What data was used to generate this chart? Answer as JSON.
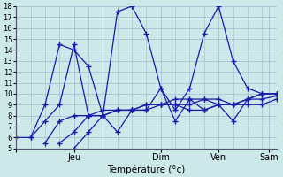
{
  "xlabel": "Température (°c)",
  "background_color": "#cce8e8",
  "grid_color": "#9bbccc",
  "line_color": "#1a1aaa",
  "ylim": [
    5,
    18
  ],
  "yticks": [
    5,
    6,
    7,
    8,
    9,
    10,
    11,
    12,
    13,
    14,
    15,
    16,
    17,
    18
  ],
  "xlim": [
    0,
    72
  ],
  "day_positions": [
    0,
    16,
    40,
    56,
    70
  ],
  "day_labels": [
    "",
    "Jeu",
    "Dim",
    "Ven",
    "Sam"
  ],
  "lines": [
    {
      "x": [
        0,
        4,
        8,
        12,
        16,
        20,
        24,
        28,
        32,
        36,
        40,
        44,
        48,
        52,
        56,
        60,
        64,
        68,
        72
      ],
      "y": [
        6.0,
        6.0,
        9.0,
        14.5,
        14.0,
        12.5,
        8.0,
        17.5,
        18.0,
        15.5,
        10.5,
        8.5,
        10.5,
        15.5,
        18.0,
        13.0,
        10.5,
        10.0,
        10.0
      ]
    },
    {
      "x": [
        4,
        8,
        12,
        16,
        20,
        24,
        28,
        32,
        36,
        40,
        44,
        48,
        52,
        56,
        60,
        64,
        68,
        72
      ],
      "y": [
        6.0,
        7.5,
        9.0,
        14.5,
        8.0,
        8.0,
        8.5,
        8.5,
        8.5,
        10.5,
        7.5,
        9.5,
        9.5,
        9.0,
        7.5,
        9.5,
        10.0,
        10.0
      ]
    },
    {
      "x": [
        8,
        12,
        16,
        20,
        24,
        28,
        32,
        36,
        40,
        44,
        48,
        52,
        56,
        60,
        64,
        68,
        72
      ],
      "y": [
        5.5,
        7.5,
        8.0,
        8.0,
        8.5,
        8.5,
        8.5,
        9.0,
        9.0,
        9.0,
        8.5,
        8.5,
        9.0,
        9.0,
        9.5,
        10.0,
        10.0
      ]
    },
    {
      "x": [
        12,
        16,
        20,
        24,
        28,
        32,
        36,
        40,
        44,
        48,
        52,
        56,
        60,
        64,
        68,
        72
      ],
      "y": [
        5.5,
        6.5,
        8.0,
        8.0,
        8.5,
        8.5,
        9.0,
        9.0,
        9.0,
        9.0,
        9.5,
        9.5,
        9.0,
        9.5,
        9.5,
        9.8
      ]
    },
    {
      "x": [
        16,
        20,
        24,
        28,
        32,
        36,
        40,
        44,
        48,
        52,
        56,
        60,
        64,
        68,
        72
      ],
      "y": [
        5.0,
        6.5,
        8.0,
        6.5,
        8.5,
        8.5,
        9.0,
        9.5,
        9.5,
        8.5,
        9.0,
        9.0,
        9.0,
        9.0,
        9.5
      ]
    }
  ]
}
